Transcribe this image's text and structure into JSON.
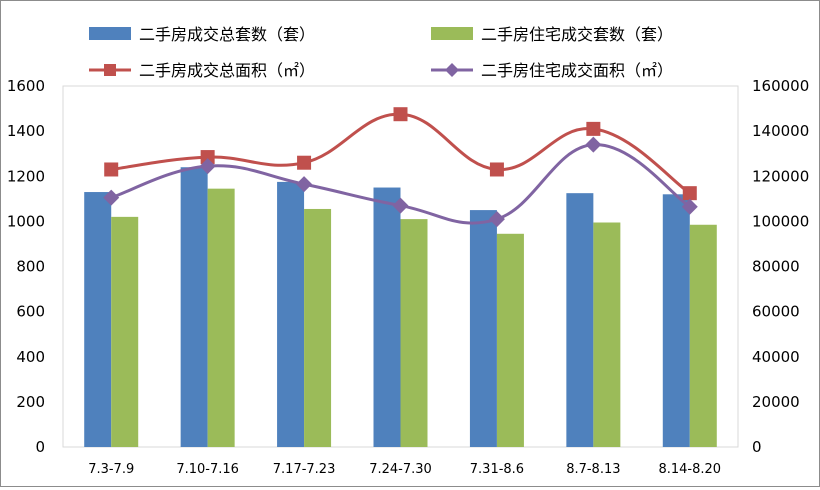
{
  "chart_data": {
    "type": "bar",
    "categories": [
      "7.3-7.9",
      "7.10-7.16",
      "7.17-7.23",
      "7.24-7.30",
      "7.31-8.6",
      "8.7-8.13",
      "8.14-8.20"
    ],
    "left_axis": {
      "ylim": [
        0,
        1600
      ],
      "ticks": [
        "0",
        "200",
        "400",
        "600",
        "800",
        "1000",
        "1200",
        "1400",
        "1600"
      ]
    },
    "right_axis": {
      "ylim": [
        0,
        160000
      ],
      "ticks": [
        "0",
        "20000",
        "40000",
        "60000",
        "80000",
        "100000",
        "120000",
        "140000",
        "160000"
      ]
    },
    "grid": false,
    "legend_position": "top",
    "series": [
      {
        "name": "二手房成交总套数（套）",
        "kind": "bar",
        "axis": "left",
        "color": "#4f81bd",
        "values": [
          1130,
          1240,
          1175,
          1150,
          1050,
          1125,
          1120
        ]
      },
      {
        "name": "二手房住宅成交套数（套）",
        "kind": "bar",
        "axis": "left",
        "color": "#9bbb59",
        "values": [
          1020,
          1145,
          1055,
          1010,
          945,
          995,
          985
        ]
      },
      {
        "name": "二手房成交总面积（㎡）",
        "kind": "line",
        "axis": "right",
        "color": "#c0504d",
        "marker": "square",
        "values": [
          123000,
          128500,
          126000,
          147500,
          123000,
          141000,
          112500
        ]
      },
      {
        "name": "二手房住宅成交面积（㎡）",
        "kind": "line",
        "axis": "right",
        "color": "#8064a2",
        "marker": "diamond",
        "values": [
          110500,
          124500,
          116500,
          107000,
          101000,
          134000,
          106500
        ]
      }
    ]
  }
}
